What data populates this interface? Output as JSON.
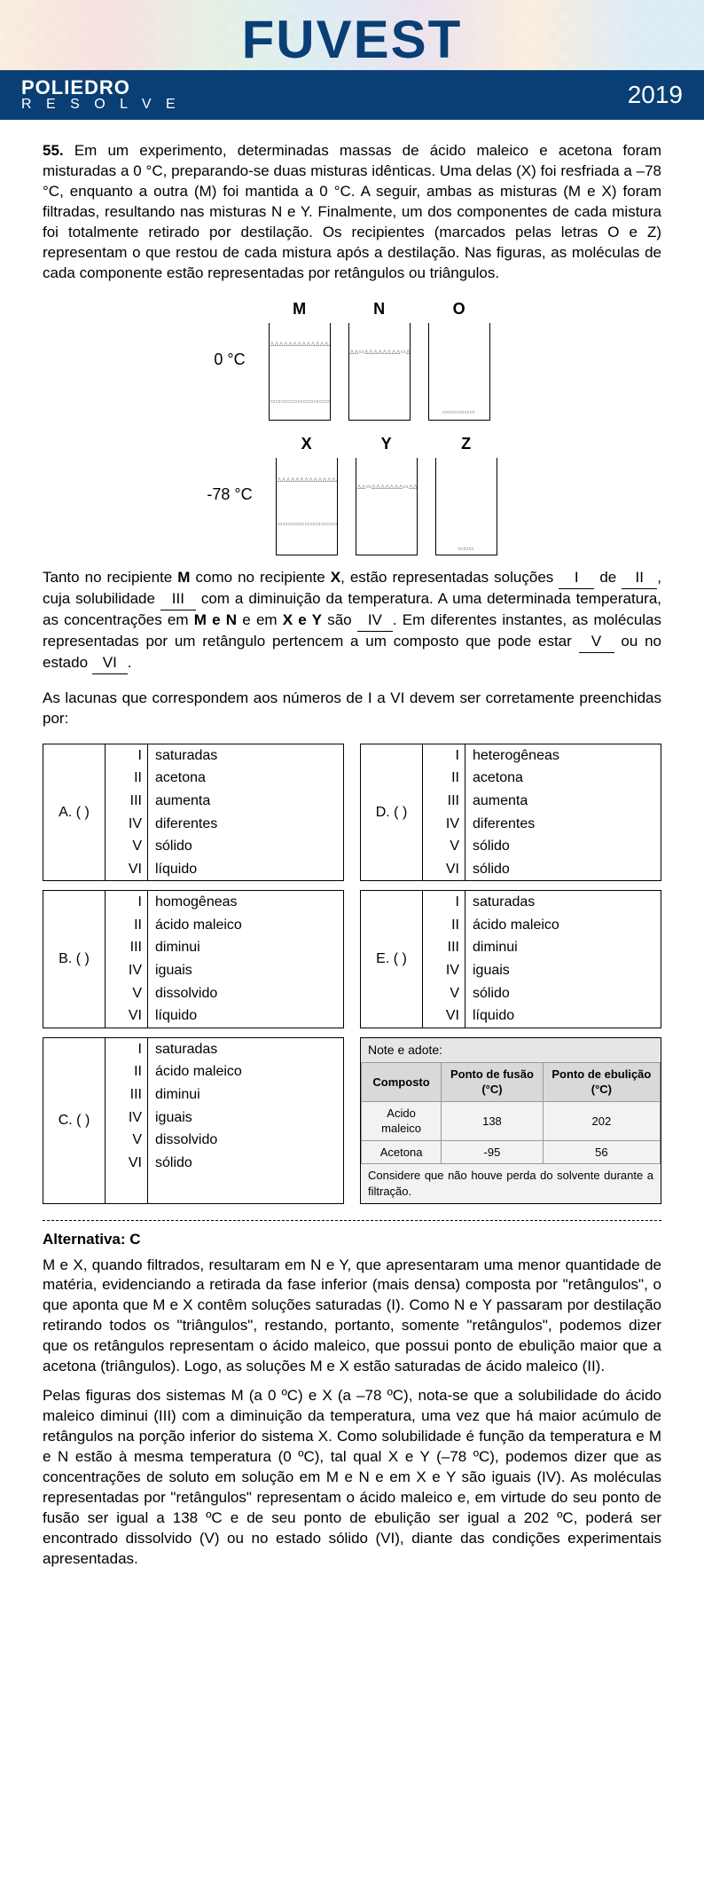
{
  "header": {
    "title": "FUVEST",
    "brand_line1": "POLIEDRO",
    "brand_line2": "R E S O L V E",
    "year": "2019",
    "brand_bg": "#0a3f75",
    "brand_text": "#ffffff"
  },
  "question": {
    "number": "55.",
    "intro": "Em um experimento, determinadas massas de ácido maleico e acetona foram misturadas a 0 °C, preparando-se duas misturas idênticas. Uma delas (X) foi resfriada a –78 °C, enquanto a outra (M) foi  mantida a 0 °C. A seguir, ambas as  misturas  (M e X) foram filtradas, resultando nas misturas N e Y. Finalmente, um dos componentes de cada mistura foi totalmente retirado por destilação.  Os  recipientes  (marcados  pelas letras  O  e  Z) representam o que restou de cada mistura após a destilação. Nas figuras, as moléculas de cada componente estão representadas por retângulos ou triângulos.",
    "diagram": {
      "rows": [
        {
          "temp_label": "0 °C",
          "beakers": [
            {
              "label": "M",
              "tri_height": 65,
              "sq_height": 24,
              "sq_pattern": "▭▭▭▭▭▭▭▭▭▭▭▭▭▭▭▭▭▭▭▭▭▭▭▭▭▭▭▭",
              "tri_pattern": "△△△△△△△△△△△△△△△△△△△△△△△△△△△△△△△△△△△△△△△△△△△△△△△△△△△△△△△△△△△△△△△△△△△△△△△△△△△△△△△△"
            },
            {
              "label": "N",
              "tri_height": 80,
              "sq_height": 0,
              "tri_pattern": "△△▭△△△△△△△△▭△△△△△△△△△▭△△△△△△△△▭△△△△△△△△△▭△△△△△△△△▭△△△△△△△△△▭△△△△△△△△▭△△△△△△△△△▭△△△△△△△△▭△△△△△△△"
            },
            {
              "label": "O",
              "tri_height": 0,
              "sq_height": 12,
              "sq_pattern": "▭▭▭▭▭▭"
            }
          ]
        },
        {
          "temp_label": "-78 °C",
          "beakers": [
            {
              "label": "X",
              "tri_height": 50,
              "sq_height": 38,
              "sq_pattern": "▭▭▭▭▭▭▭▭▭▭▭▭▭▭▭▭▭▭▭▭▭▭▭▭▭▭▭▭▭▭▭▭▭▭▭▭▭▭▭▭▭▭▭▭",
              "tri_pattern": "△△△△△△△△△△△△△△△△△△△△△△△△△△△△△△△△△△△△△△△△△△△△△△△△△△△△△△△△△△△△"
            },
            {
              "label": "Y",
              "tri_height": 80,
              "sq_height": 0,
              "tri_pattern": "△△▭△△△△△△△▭△△△△△△△△▭△△△△△△△▭△△△△△△△△▭△△△△△△△▭△△△△△△△△▭△△△△△△△▭△△△△△△△△▭△△△△△△△▭"
            },
            {
              "label": "Z",
              "tri_height": 0,
              "sq_height": 10,
              "sq_pattern": "▭▭▭"
            }
          ]
        }
      ]
    },
    "fill_text": {
      "p1_before": "Tanto no recipiente ",
      "p1_M": "M",
      "p1_mid1": " como no recipiente ",
      "p1_X": "X",
      "p1_mid2": ", estão representadas soluções ",
      "b1": "I",
      "p1_mid3": " de ",
      "b2": "II",
      "p1_mid4": ", cuja solubilidade ",
      "b3": "III",
      "p1_mid5": " com a diminuição da temperatura. A uma determinada temperatura, as concentrações em ",
      "p1_MN": "M e N",
      "p1_mid6": " e em ",
      "p1_XY": "X e Y",
      "p1_mid7": " são ",
      "b4": "IV",
      "p1_mid8": ". Em diferentes instantes, as moléculas representadas por um retângulo pertencem a um composto que pode estar ",
      "b5": "V",
      "p1_mid9": " ou no estado ",
      "b6": "VI",
      "p1_end": "."
    },
    "prompt": "As lacunas que correspondem aos números de I a VI devem ser corretamente preenchidas por:"
  },
  "options": {
    "romans": [
      "I",
      "II",
      "III",
      "IV",
      "V",
      "VI"
    ],
    "list": [
      {
        "letter": "A. (   )",
        "words": [
          "saturadas",
          "acetona",
          "aumenta",
          "diferentes",
          "sólido",
          "líquido"
        ]
      },
      {
        "letter": "D. (   )",
        "words": [
          "heterogêneas",
          "acetona",
          "aumenta",
          "diferentes",
          "sólido",
          "sólido"
        ]
      },
      {
        "letter": "B. (   )",
        "words": [
          "homogêneas",
          "ácido maleico",
          "diminui",
          "iguais",
          "dissolvido",
          "líquido"
        ]
      },
      {
        "letter": "E. (   )",
        "words": [
          "saturadas",
          "ácido maleico",
          "diminui",
          "iguais",
          "sólido",
          "líquido"
        ]
      },
      {
        "letter": "C. (   )",
        "words": [
          "saturadas",
          "ácido maleico",
          "diminui",
          "iguais",
          "dissolvido",
          "sólido"
        ]
      }
    ]
  },
  "note_box": {
    "title": "Note e adote:",
    "headers": [
      "Composto",
      "Ponto de fusão (°C)",
      "Ponto de ebulição (°C)"
    ],
    "rows": [
      [
        "Acido maleico",
        "138",
        "202"
      ],
      [
        "Acetona",
        "-95",
        "56"
      ]
    ],
    "footer": "Considere que não houve perda do solvente durante a filtração."
  },
  "answer": {
    "title": "Alternativa: C",
    "p1": "M e X, quando filtrados, resultaram em N e Y, que apresentaram uma menor quantidade de matéria, evidenciando a retirada da fase inferior (mais densa) composta por \"retângulos\", o que aponta que M e X contêm soluções saturadas (I). Como N e Y passaram por destilação retirando todos os \"triângulos\", restando, portanto, somente \"retângulos\", podemos dizer que os retângulos representam o ácido maleico, que possui ponto de ebulição maior que a acetona (triângulos). Logo, as soluções M e X estão saturadas de ácido maleico (II).",
    "p2": "Pelas figuras dos sistemas M (a 0 ºC) e X (a –78 ºC), nota-se que a solubilidade do ácido maleico diminui (III) com a diminuição da temperatura, uma vez que há maior acúmulo de retângulos na porção inferior do sistema X. Como solubilidade é função da temperatura e M e N estão à mesma temperatura (0 ºC), tal qual X e Y (–78 ºC), podemos dizer que as concentrações de soluto em solução em M e N e em X e Y são iguais (IV). As moléculas representadas por \"retângulos\" representam o ácido maleico e, em virtude do seu ponto de fusão ser igual a 138 ºC e de seu ponto de ebulição ser igual a 202 ºC, poderá ser encontrado dissolvido (V) ou no estado sólido (VI), diante das condições experimentais apresentadas."
  }
}
